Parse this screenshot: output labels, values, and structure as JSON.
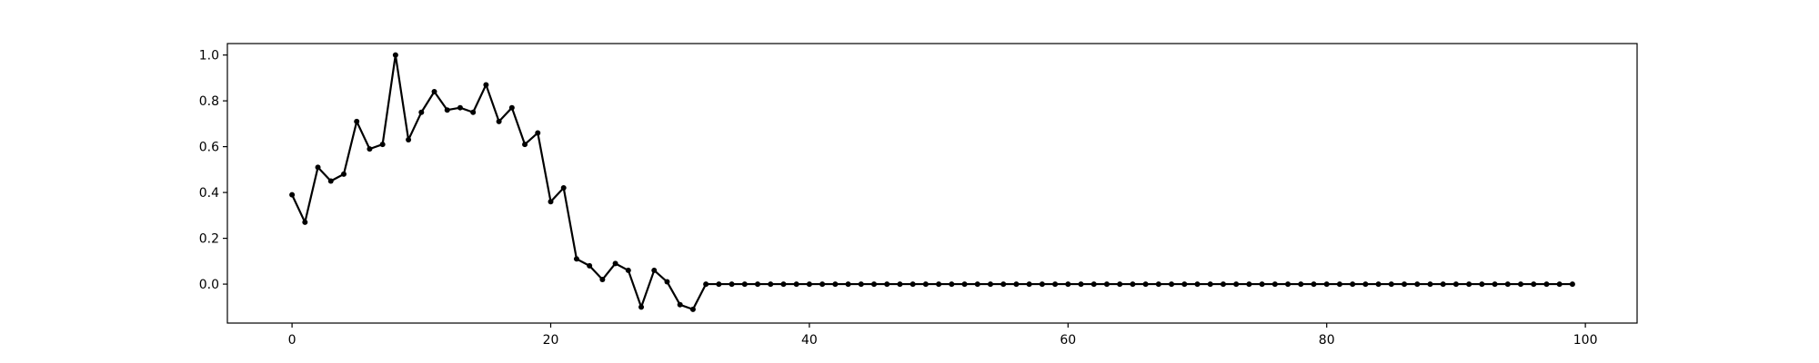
{
  "chart_data": {
    "type": "line",
    "title": "",
    "xlabel": "",
    "ylabel": "",
    "xlim": [
      -5,
      104
    ],
    "ylim": [
      -0.17,
      1.05
    ],
    "grid": false,
    "legend": "none",
    "marker": "circle",
    "xticks": [
      0,
      20,
      40,
      60,
      80,
      100
    ],
    "xtick_labels": [
      "0",
      "20",
      "40",
      "60",
      "80",
      "100"
    ],
    "yticks": [
      0.0,
      0.2,
      0.4,
      0.6,
      0.8,
      1.0
    ],
    "ytick_labels": [
      "0.0",
      "0.2",
      "0.4",
      "0.6",
      "0.8",
      "1.0"
    ],
    "series": [
      {
        "color": "#000000",
        "x": [
          0,
          1,
          2,
          3,
          4,
          5,
          6,
          7,
          8,
          9,
          10,
          11,
          12,
          13,
          14,
          15,
          16,
          17,
          18,
          19,
          20,
          21,
          22,
          23,
          24,
          25,
          26,
          27,
          28,
          29,
          30,
          31,
          32,
          33,
          34,
          35,
          36,
          37,
          38,
          39,
          40,
          41,
          42,
          43,
          44,
          45,
          46,
          47,
          48,
          49,
          50,
          51,
          52,
          53,
          54,
          55,
          56,
          57,
          58,
          59,
          60,
          61,
          62,
          63,
          64,
          65,
          66,
          67,
          68,
          69,
          70,
          71,
          72,
          73,
          74,
          75,
          76,
          77,
          78,
          79,
          80,
          81,
          82,
          83,
          84,
          85,
          86,
          87,
          88,
          89,
          90,
          91,
          92,
          93,
          94,
          95,
          96,
          97,
          98,
          99
        ],
        "y": [
          0.39,
          0.27,
          0.51,
          0.45,
          0.48,
          0.71,
          0.59,
          0.61,
          1.0,
          0.63,
          0.75,
          0.84,
          0.76,
          0.77,
          0.75,
          0.87,
          0.71,
          0.77,
          0.61,
          0.66,
          0.36,
          0.42,
          0.11,
          0.08,
          0.02,
          0.09,
          0.06,
          -0.1,
          0.06,
          0.01,
          -0.09,
          -0.11,
          0,
          0,
          0,
          0,
          0,
          0,
          0,
          0,
          0,
          0,
          0,
          0,
          0,
          0,
          0,
          0,
          0,
          0,
          0,
          0,
          0,
          0,
          0,
          0,
          0,
          0,
          0,
          0,
          0,
          0,
          0,
          0,
          0,
          0,
          0,
          0,
          0,
          0,
          0,
          0,
          0,
          0,
          0,
          0,
          0,
          0,
          0,
          0,
          0,
          0,
          0,
          0,
          0,
          0,
          0,
          0,
          0,
          0,
          0,
          0,
          0,
          0,
          0,
          0,
          0,
          0,
          0,
          0
        ]
      }
    ]
  }
}
